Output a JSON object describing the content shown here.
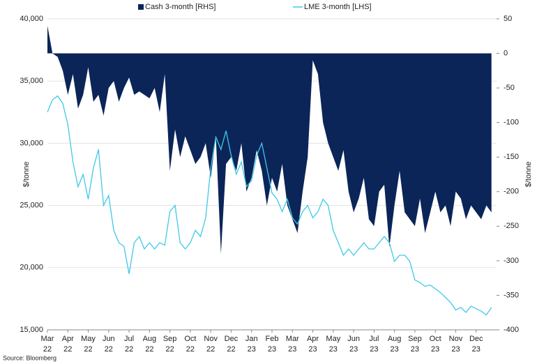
{
  "chart_data": {
    "type": "line",
    "legend": [
      "Cash 3-month [RHS]",
      "LME 3-month [LHS]"
    ],
    "ylabel": "$/tonne",
    "y2label": "$/tonne",
    "source": "Source: Bloomberg",
    "grid": true,
    "legend_position": "top",
    "xlim": [
      0,
      22
    ],
    "xticks": [
      {
        "value": 0,
        "label": "Mar 22"
      },
      {
        "value": 1,
        "label": "Apr 22"
      },
      {
        "value": 2,
        "label": "May 22"
      },
      {
        "value": 3,
        "label": "Jun 22"
      },
      {
        "value": 4,
        "label": "Jul 22"
      },
      {
        "value": 5,
        "label": "Aug 22"
      },
      {
        "value": 6,
        "label": "Sep 22"
      },
      {
        "value": 7,
        "label": "Oct 22"
      },
      {
        "value": 8,
        "label": "Nov 22"
      },
      {
        "value": 9,
        "label": "Dec 22"
      },
      {
        "value": 10,
        "label": "Jan 23"
      },
      {
        "value": 11,
        "label": "Feb 23"
      },
      {
        "value": 12,
        "label": "Mar 23"
      },
      {
        "value": 13,
        "label": "Apr 23"
      },
      {
        "value": 14,
        "label": "May 23"
      },
      {
        "value": 15,
        "label": "Jun 23"
      },
      {
        "value": 16,
        "label": "Jul 23"
      },
      {
        "value": 17,
        "label": "Aug 23"
      },
      {
        "value": 18,
        "label": "Sep 23"
      },
      {
        "value": 19,
        "label": "Oct 23"
      },
      {
        "value": 20,
        "label": "Nov 23"
      },
      {
        "value": 21,
        "label": "Dec 23"
      }
    ],
    "ylim": [
      15000,
      40000
    ],
    "yticks": [
      {
        "value": 15000,
        "label": "15,000"
      },
      {
        "value": 20000,
        "label": "20,000"
      },
      {
        "value": 25000,
        "label": "25,000"
      },
      {
        "value": 30000,
        "label": "30,000"
      },
      {
        "value": 35000,
        "label": "35,000"
      },
      {
        "value": 40000,
        "label": "40,000"
      }
    ],
    "y2lim": [
      -400,
      50
    ],
    "y2ticks": [
      -400,
      -350,
      -300,
      -250,
      -200,
      -150,
      -100,
      -50,
      0,
      50
    ],
    "x": [
      0,
      0.25,
      0.5,
      0.75,
      1,
      1.25,
      1.5,
      1.75,
      2,
      2.25,
      2.5,
      2.75,
      3,
      3.25,
      3.5,
      3.75,
      4,
      4.25,
      4.5,
      4.75,
      5,
      5.25,
      5.5,
      5.75,
      6,
      6.25,
      6.5,
      6.75,
      7,
      7.25,
      7.5,
      7.75,
      8,
      8.25,
      8.5,
      8.75,
      9,
      9.25,
      9.5,
      9.75,
      10,
      10.25,
      10.5,
      10.75,
      11,
      11.25,
      11.5,
      11.75,
      12,
      12.25,
      12.5,
      12.75,
      13,
      13.25,
      13.5,
      13.75,
      14,
      14.25,
      14.5,
      14.75,
      15,
      15.25,
      15.5,
      15.75,
      16,
      16.25,
      16.5,
      16.75,
      17,
      17.25,
      17.5,
      17.75,
      18,
      18.25,
      18.5,
      18.75,
      19,
      19.25,
      19.5,
      19.75,
      20,
      20.25,
      20.5,
      20.75,
      21,
      21.25,
      21.5,
      21.75
    ],
    "series": [
      {
        "name": "Cash 3-month [RHS]",
        "color": "#0b2559",
        "axis": "y2",
        "kind": "area",
        "values": [
          40,
          0,
          -5,
          -25,
          -60,
          -30,
          -80,
          -60,
          -20,
          -70,
          -60,
          -90,
          -50,
          -40,
          -70,
          -50,
          -35,
          -60,
          -55,
          -60,
          -65,
          -50,
          -85,
          -30,
          -170,
          -110,
          -150,
          -120,
          -140,
          -160,
          -150,
          -130,
          -180,
          -120,
          -290,
          -160,
          -150,
          -170,
          -130,
          -200,
          -180,
          -140,
          -170,
          -220,
          -180,
          -200,
          -160,
          -220,
          -240,
          -260,
          -200,
          -150,
          -10,
          -30,
          -100,
          -130,
          -150,
          -170,
          -140,
          -200,
          -230,
          -210,
          -180,
          -240,
          -250,
          -200,
          -190,
          -280,
          -220,
          -170,
          -230,
          -240,
          -250,
          -210,
          -260,
          -230,
          -200,
          -230,
          -220,
          -250,
          -200,
          -210,
          -240,
          -220,
          -230,
          -240,
          -220,
          -230
        ]
      },
      {
        "name": "LME 3-month [LHS]",
        "color": "#3fc8e8",
        "kind": "line",
        "values": [
          32500,
          33500,
          33800,
          33200,
          31500,
          28500,
          26500,
          27500,
          25500,
          28000,
          29500,
          25000,
          25800,
          23000,
          22000,
          21700,
          19500,
          22000,
          22500,
          21500,
          22000,
          21500,
          22000,
          21800,
          24500,
          25000,
          22000,
          21500,
          22000,
          23000,
          22500,
          24000,
          28000,
          30500,
          29500,
          31000,
          29000,
          27500,
          28500,
          26500,
          27000,
          29000,
          30000,
          28000,
          26000,
          25500,
          24500,
          25500,
          24000,
          23500,
          24500,
          25000,
          24000,
          24500,
          25500,
          25000,
          23000,
          22000,
          21000,
          21500,
          21000,
          21500,
          22000,
          21500,
          21500,
          22000,
          22500,
          22000,
          20500,
          21000,
          21000,
          20500,
          19000,
          18800,
          18500,
          18600,
          18300,
          18000,
          17600,
          17200,
          16600,
          16800,
          16400,
          16900,
          16700,
          16500,
          16200,
          16800
        ]
      }
    ]
  }
}
